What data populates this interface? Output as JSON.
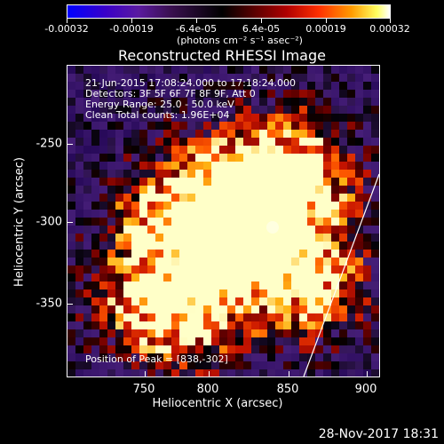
{
  "colorbar": {
    "tick_labels": [
      "-0.00032",
      "-0.00019",
      "-6.4e-05",
      "6.4e-05",
      "0.00019",
      "0.00032"
    ],
    "units": "(photons cm⁻² s⁻¹ asec⁻²)"
  },
  "title": "Reconstructed RHESSI Image",
  "info": {
    "line1": "21-Jun-2015 17:08:24.000 to 17:18:24.000",
    "line2": "Detectors: 3F 5F 6F 7F 8F 9F, Att 0",
    "line3": "Energy Range: 25.0 - 50.0 keV",
    "line4": "Clean    Total counts: 1.96E+04",
    "peak": "Position of Peak = [838,-302]"
  },
  "axes": {
    "xlabel": "Heliocentric X (arcsec)",
    "ylabel": "Heliocentric Y (arcsec)",
    "x_ticks": [
      "750",
      "800",
      "850",
      "900"
    ],
    "y_ticks": [
      "-250",
      "-300",
      "-350"
    ]
  },
  "timestamp": "28-Nov-2017 18:31",
  "colors": {
    "background": "#000000",
    "low": "#0000ff",
    "high": "#ffffff",
    "accent": "#ff9a00"
  }
}
